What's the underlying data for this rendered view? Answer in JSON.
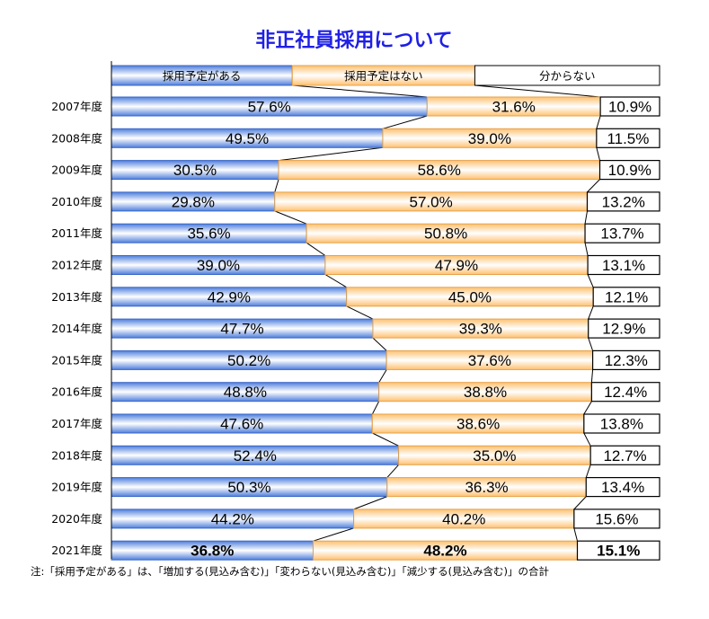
{
  "title": "非正社員採用について",
  "note": "注:「採用予定がある」は、「増加する(見込み含む)」「変わらない(見込み含む)」「減少する(見込み含む)」の合計",
  "colors": {
    "title": "#1f1fe6",
    "planned": "#6f9be8",
    "not_planned": "#ffcc8a",
    "unknown": "#ffffff"
  },
  "chart_data": {
    "type": "bar",
    "stacked": true,
    "orientation": "horizontal",
    "percent_stacked": true,
    "legend_position": "top",
    "categories": [
      "2007年度",
      "2008年度",
      "2009年度",
      "2010年度",
      "2011年度",
      "2012年度",
      "2013年度",
      "2014年度",
      "2015年度",
      "2016年度",
      "2017年度",
      "2018年度",
      "2019年度",
      "2020年度",
      "2021年度"
    ],
    "series": [
      {
        "name": "採用予定がある",
        "values": [
          57.6,
          49.5,
          30.5,
          29.8,
          35.6,
          39.0,
          42.9,
          47.7,
          50.2,
          48.8,
          47.6,
          52.4,
          50.3,
          44.2,
          36.8
        ],
        "labels": [
          "57.6%",
          "49.5%",
          "30.5%",
          "29.8%",
          "35.6%",
          "39.0%",
          "42.9%",
          "47.7%",
          "50.2%",
          "48.8%",
          "47.6%",
          "52.4%",
          "50.3%",
          "44.2%",
          "36.8%"
        ]
      },
      {
        "name": "採用予定はない",
        "values": [
          31.6,
          39.0,
          58.6,
          57.0,
          50.8,
          47.9,
          45.0,
          39.3,
          37.6,
          38.8,
          38.6,
          35.0,
          36.3,
          40.2,
          48.2
        ],
        "labels": [
          "31.6%",
          "39.0%",
          "58.6%",
          "57.0%",
          "50.8%",
          "47.9%",
          "45.0%",
          "39.3%",
          "37.6%",
          "38.8%",
          "38.6%",
          "35.0%",
          "36.3%",
          "40.2%",
          "48.2%"
        ]
      },
      {
        "name": "分からない",
        "values": [
          10.9,
          11.5,
          10.9,
          13.2,
          13.7,
          13.1,
          12.1,
          12.9,
          12.3,
          12.4,
          13.8,
          12.7,
          13.4,
          15.6,
          15.1
        ],
        "labels": [
          "10.9%",
          "11.5%",
          "10.9%",
          "13.2%",
          "13.7%",
          "13.1%",
          "12.1%",
          "12.9%",
          "12.3%",
          "12.4%",
          "13.8%",
          "12.7%",
          "13.4%",
          "15.6%",
          "15.1%"
        ]
      }
    ],
    "xlim": [
      0,
      100
    ],
    "highlight_last_row_bold": true
  }
}
